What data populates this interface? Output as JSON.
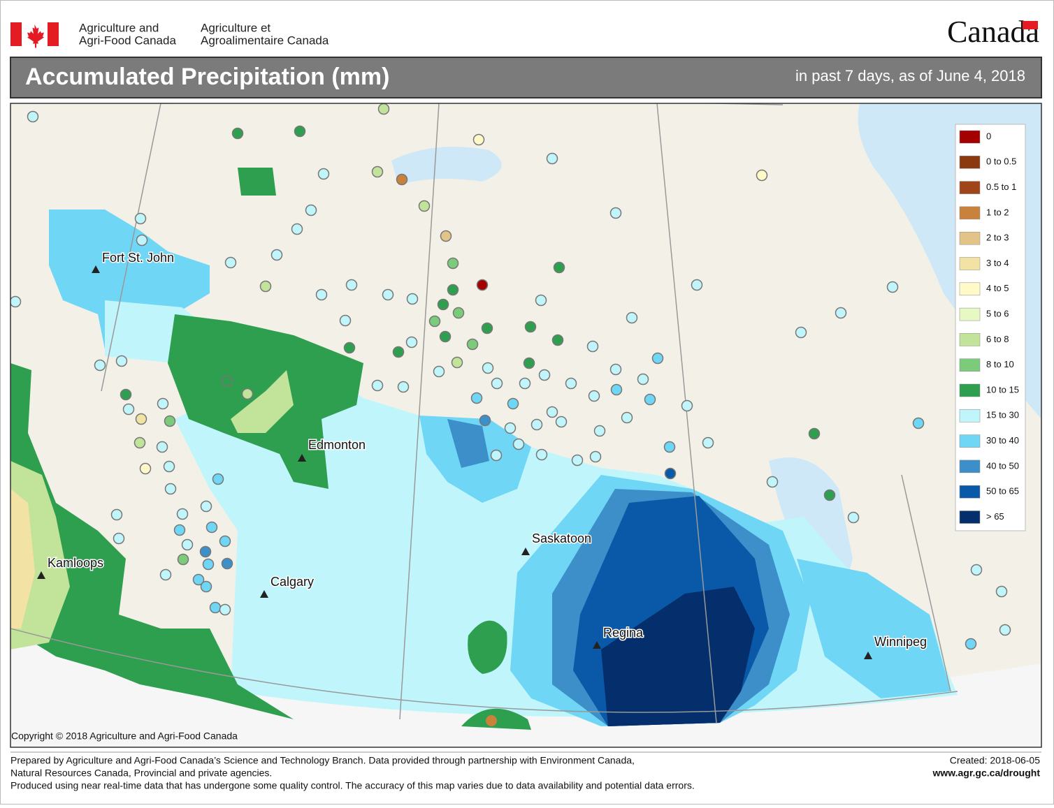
{
  "header": {
    "department_en": [
      "Agriculture and",
      "Agri-Food Canada"
    ],
    "department_fr": [
      "Agriculture et",
      "Agroalimentaire Canada"
    ],
    "wordmark": "Canada"
  },
  "title": "Accumulated Precipitation (mm)",
  "subtitle": "in past 7 days, as of June 4, 2018",
  "cities": [
    {
      "name": "Fort St. John"
    },
    {
      "name": "Edmonton"
    },
    {
      "name": "Kamloops"
    },
    {
      "name": "Calgary"
    },
    {
      "name": "Saskatoon"
    },
    {
      "name": "Regina"
    },
    {
      "name": "Winnipeg"
    }
  ],
  "legend": {
    "items": [
      {
        "label": "0",
        "color": "#a50000"
      },
      {
        "label": "0 to 0.5",
        "color": "#8b3a10"
      },
      {
        "label": "0.5 to 1",
        "color": "#a0441a"
      },
      {
        "label": "1 to 2",
        "color": "#c8823c"
      },
      {
        "label": "2 to 3",
        "color": "#e3c488"
      },
      {
        "label": "3 to 4",
        "color": "#f2e3a4"
      },
      {
        "label": "4 to 5",
        "color": "#fffac8"
      },
      {
        "label": "5 to 6",
        "color": "#e8f8c4"
      },
      {
        "label": "6 to 8",
        "color": "#c2e49a"
      },
      {
        "label": "8 to 10",
        "color": "#7ccb7a"
      },
      {
        "label": "10 to 15",
        "color": "#2e9e4f"
      },
      {
        "label": "15 to 30",
        "color": "#c0f6fb"
      },
      {
        "label": "30 to 40",
        "color": "#6fd6f5"
      },
      {
        "label": "40 to 50",
        "color": "#3c8fc8"
      },
      {
        "label": "50 to 65",
        "color": "#0a58a8"
      },
      {
        "label": "> 65",
        "color": "#052f6c"
      }
    ]
  },
  "copyright": "Copyright © 2018 Agriculture and Agri-Food Canada",
  "footer": {
    "lines": [
      "Prepared by Agriculture and Agri-Food Canada’s Science and Technology Branch. Data provided through partnership with Environment Canada,",
      "Natural Resources Canada, Provincial and private agencies.",
      "Produced using near real-time data that has undergone some quality control. The accuracy of this map varies due to data availability and potential data errors."
    ],
    "created": "Created: 2018-06-05",
    "url": "www.agr.gc.ca/drought"
  }
}
